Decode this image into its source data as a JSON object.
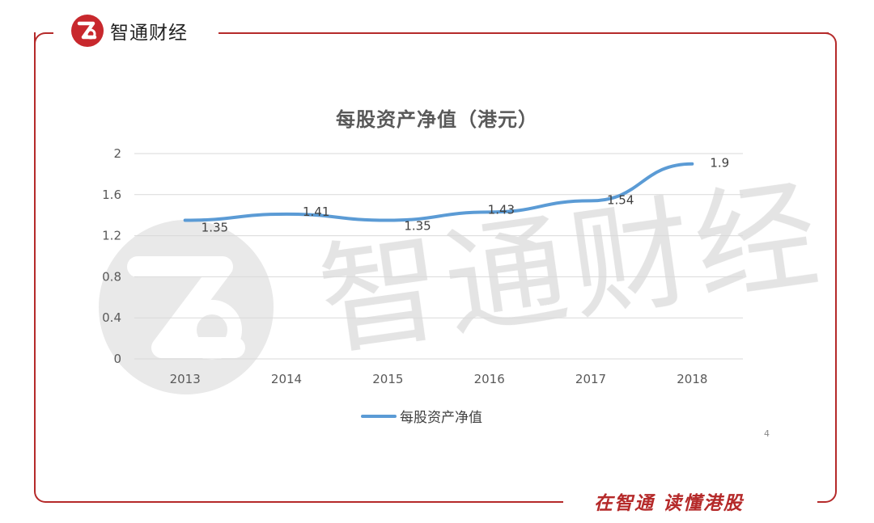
{
  "brand": {
    "name": "智通财经",
    "logo_icon": "zhitong-logo-icon",
    "color": "#c8282d"
  },
  "slogan": "在智通  读懂港股",
  "watermark": {
    "text": "智通财经"
  },
  "stray_mark": "4",
  "chart_data": {
    "type": "line",
    "title": "每股资产净值（港元）",
    "categories": [
      "2013",
      "2014",
      "2015",
      "2016",
      "2017",
      "2018"
    ],
    "series": [
      {
        "name": "每股资产净值",
        "values": [
          1.35,
          1.41,
          1.35,
          1.43,
          1.54,
          1.9
        ],
        "color": "#5b9bd5"
      }
    ],
    "data_labels": [
      "1.35",
      "1.41",
      "1.35",
      "1.43",
      "1.54",
      "1.9"
    ],
    "ylim": [
      0,
      2
    ],
    "yticks": [
      "0",
      "0.4",
      "0.8",
      "1.2",
      "1.6",
      "2"
    ],
    "ytick_values": [
      0,
      0.4,
      0.8,
      1.2,
      1.6,
      2
    ],
    "grid": true,
    "legend_position": "bottom",
    "xlabel": "",
    "ylabel": ""
  }
}
